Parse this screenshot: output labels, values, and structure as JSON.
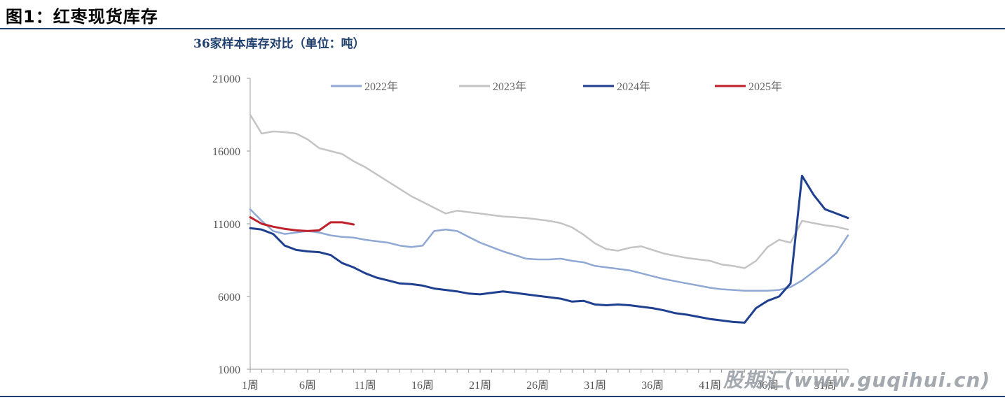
{
  "figure_title": "图1：红枣现货库存",
  "watermark": "股期汇(www.guqihui.cn)",
  "chart_data": {
    "type": "line",
    "title": "36家样本库存对比（单位：吨）",
    "xlabel": "",
    "ylabel": "",
    "ylim": [
      1000,
      21000
    ],
    "yticks": [
      1000,
      6000,
      11000,
      16000,
      21000
    ],
    "xlim": [
      1,
      53
    ],
    "xtick_labels": [
      "1周",
      "6周",
      "11周",
      "16周",
      "21周",
      "26周",
      "31周",
      "36周",
      "41周",
      "46周",
      "51周"
    ],
    "xtick_values": [
      1,
      6,
      11,
      16,
      21,
      26,
      31,
      36,
      41,
      46,
      51
    ],
    "legend_position": "top",
    "grid": false,
    "series": [
      {
        "name": "2022年",
        "color": "#8fa9d4",
        "width": 2.5,
        "x": [
          1,
          2,
          3,
          4,
          5,
          6,
          7,
          8,
          9,
          10,
          11,
          12,
          13,
          14,
          15,
          16,
          17,
          18,
          19,
          20,
          21,
          22,
          23,
          24,
          25,
          26,
          27,
          28,
          29,
          30,
          31,
          32,
          33,
          34,
          35,
          36,
          37,
          38,
          39,
          40,
          41,
          42,
          43,
          44,
          45,
          46,
          47,
          48,
          49,
          50,
          51,
          52,
          53
        ],
        "values": [
          12000,
          11200,
          10500,
          10300,
          10400,
          10500,
          10400,
          10200,
          10100,
          10050,
          9900,
          9800,
          9700,
          9500,
          9400,
          9500,
          10500,
          10600,
          10500,
          10100,
          9700,
          9400,
          9100,
          8850,
          8600,
          8550,
          8550,
          8600,
          8450,
          8350,
          8100,
          8000,
          7900,
          7800,
          7600,
          7400,
          7200,
          7050,
          6900,
          6750,
          6600,
          6500,
          6450,
          6400,
          6400,
          6400,
          6450,
          6650,
          7100,
          7700,
          8300,
          9000,
          10200
        ]
      },
      {
        "name": "2023年",
        "color": "#c4c4c4",
        "width": 2.5,
        "x": [
          1,
          2,
          3,
          4,
          5,
          6,
          7,
          8,
          9,
          10,
          11,
          12,
          13,
          14,
          15,
          16,
          17,
          18,
          19,
          20,
          21,
          22,
          23,
          24,
          25,
          26,
          27,
          28,
          29,
          30,
          31,
          32,
          33,
          34,
          35,
          36,
          37,
          38,
          39,
          40,
          41,
          42,
          43,
          44,
          45,
          46,
          47,
          48,
          49,
          50,
          51,
          52,
          53
        ],
        "values": [
          18500,
          17200,
          17350,
          17300,
          17200,
          16800,
          16200,
          16000,
          15800,
          15300,
          14900,
          14400,
          13900,
          13400,
          12900,
          12500,
          12100,
          11700,
          11900,
          11800,
          11700,
          11600,
          11500,
          11450,
          11400,
          11300,
          11200,
          11050,
          10750,
          10250,
          9650,
          9250,
          9150,
          9350,
          9450,
          9200,
          8950,
          8800,
          8650,
          8550,
          8450,
          8200,
          8100,
          7950,
          8450,
          9400,
          9900,
          9700,
          11200,
          11050,
          10900,
          10800,
          10600
        ]
      },
      {
        "name": "2024年",
        "color": "#1f3f8f",
        "width": 3,
        "x": [
          1,
          2,
          3,
          4,
          5,
          6,
          7,
          8,
          9,
          10,
          11,
          12,
          13,
          14,
          15,
          16,
          17,
          18,
          19,
          20,
          21,
          22,
          23,
          24,
          25,
          26,
          27,
          28,
          29,
          30,
          31,
          32,
          33,
          34,
          35,
          36,
          37,
          38,
          39,
          40,
          41,
          42,
          43,
          44,
          45,
          46,
          47,
          48,
          49,
          50,
          51,
          52,
          53
        ],
        "values": [
          10700,
          10600,
          10300,
          9500,
          9200,
          9100,
          9050,
          8850,
          8300,
          8000,
          7600,
          7300,
          7100,
          6900,
          6850,
          6750,
          6550,
          6450,
          6350,
          6200,
          6150,
          6250,
          6350,
          6250,
          6150,
          6050,
          5950,
          5850,
          5650,
          5700,
          5450,
          5400,
          5450,
          5400,
          5300,
          5200,
          5050,
          4850,
          4750,
          4600,
          4450,
          4350,
          4250,
          4200,
          5200,
          5700,
          6000,
          6900,
          14300,
          13000,
          12000,
          11700,
          11400
        ]
      },
      {
        "name": "2025年",
        "color": "#c0202a",
        "width": 3,
        "x": [
          1,
          2,
          3,
          4,
          5,
          6,
          7,
          8,
          9,
          10
        ],
        "values": [
          11450,
          11000,
          10800,
          10650,
          10550,
          10500,
          10550,
          11100,
          11100,
          10950
        ]
      }
    ]
  }
}
